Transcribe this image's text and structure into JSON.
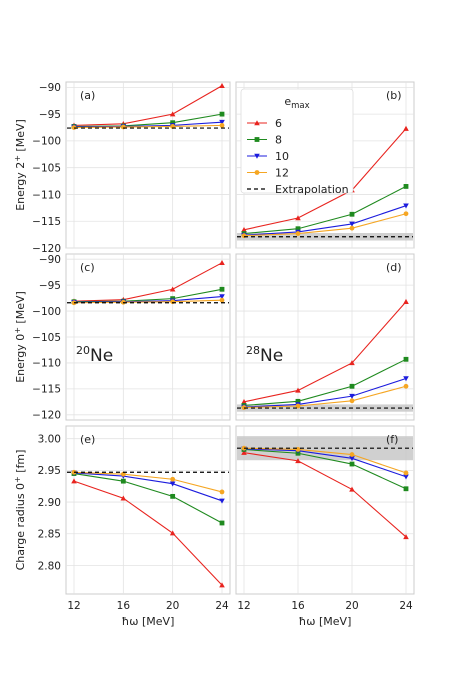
{
  "chart_data": {
    "type": "line",
    "x": [
      12,
      16,
      20,
      24
    ],
    "xlabel": "ħω [MeV]",
    "xticks": [
      "12",
      "16",
      "20",
      "24"
    ],
    "legend": {
      "title_base": "e",
      "title_sub": "max",
      "placement": "top-right of panel (b)",
      "entries": [
        "6",
        "8",
        "10",
        "12",
        "Extrapolation"
      ]
    },
    "series_styles": [
      {
        "name": "6",
        "color": "#e8241f",
        "marker": "triangle-up"
      },
      {
        "name": "8",
        "color": "#1f8a1f",
        "marker": "square"
      },
      {
        "name": "10",
        "color": "#1c1cdd",
        "marker": "triangle-down"
      },
      {
        "name": "12",
        "color": "#f5a623",
        "marker": "circle"
      }
    ],
    "extrapolation_color": "#000000",
    "band_color": "#c8c8c8",
    "nuclei": [
      {
        "base": "Ne",
        "mass": "20",
        "row": 1,
        "col": 0
      },
      {
        "base": "Ne",
        "mass": "28",
        "row": 1,
        "col": 1
      }
    ],
    "rows": [
      {
        "ylabel": "Energy 2$^+$ [MeV]",
        "ylabel_base": "Energy 2",
        "ylabel_sup": "+",
        "ylabel_tail": " [MeV]",
        "ylim": [
          -120,
          -89
        ],
        "yticks": [
          -90,
          -95,
          -100,
          -105,
          -110,
          -115,
          -120
        ],
        "ytick_labels": [
          "−90",
          "−95",
          "−100",
          "−105",
          "−110",
          "−115",
          "−120"
        ]
      },
      {
        "ylabel_base": "Energy 0",
        "ylabel_sup": "+",
        "ylabel_tail": " [MeV]",
        "ylim": [
          -121,
          -89
        ],
        "yticks": [
          -90,
          -95,
          -100,
          -105,
          -110,
          -115,
          -120
        ],
        "ytick_labels": [
          "−90",
          "−95",
          "−100",
          "−105",
          "−110",
          "−115",
          "−120"
        ]
      },
      {
        "ylabel_base": "Charge radius 0",
        "ylabel_sup": "+",
        "ylabel_tail": " [fm]",
        "ylim": [
          2.755,
          3.02
        ],
        "yticks": [
          2.8,
          2.85,
          2.9,
          2.95,
          3.0
        ],
        "ytick_labels": [
          "2.80",
          "2.85",
          "2.90",
          "2.95",
          "3.00"
        ]
      }
    ],
    "panels": [
      {
        "label": "(a)",
        "row": 0,
        "col": 0,
        "series": [
          {
            "name": "6",
            "values": [
              -97.1,
              -96.8,
              -95.0,
              -89.7
            ]
          },
          {
            "name": "8",
            "values": [
              -97.3,
              -97.2,
              -96.6,
              -95.0
            ]
          },
          {
            "name": "10",
            "values": [
              -97.4,
              -97.3,
              -97.1,
              -96.5
            ]
          },
          {
            "name": "12",
            "values": [
              -97.5,
              -97.4,
              -97.3,
              -97.1
            ]
          }
        ],
        "extrapolation": -97.6,
        "band": null
      },
      {
        "label": "(b)",
        "row": 0,
        "col": 1,
        "series": [
          {
            "name": "6",
            "values": [
              -116.6,
              -114.4,
              -109.2,
              -97.7
            ]
          },
          {
            "name": "8",
            "values": [
              -117.3,
              -116.4,
              -113.7,
              -108.5
            ]
          },
          {
            "name": "10",
            "values": [
              -117.6,
              -117.0,
              -115.5,
              -112.1
            ]
          },
          {
            "name": "12",
            "values": [
              -117.7,
              -117.3,
              -116.3,
              -113.6
            ]
          }
        ],
        "extrapolation": -117.9,
        "band": [
          -118.6,
          -117.2
        ]
      },
      {
        "label": "(c)",
        "row": 1,
        "col": 0,
        "series": [
          {
            "name": "6",
            "values": [
              -98.1,
              -97.8,
              -95.8,
              -90.7
            ]
          },
          {
            "name": "8",
            "values": [
              -98.2,
              -98.1,
              -97.6,
              -95.8
            ]
          },
          {
            "name": "10",
            "values": [
              -98.3,
              -98.2,
              -98.0,
              -97.2
            ]
          },
          {
            "name": "12",
            "values": [
              -98.4,
              -98.3,
              -98.2,
              -97.9
            ]
          }
        ],
        "extrapolation": -98.4,
        "band": null
      },
      {
        "label": "(d)",
        "row": 1,
        "col": 1,
        "series": [
          {
            "name": "6",
            "values": [
              -117.5,
              -115.3,
              -110.0,
              -98.2
            ]
          },
          {
            "name": "8",
            "values": [
              -118.2,
              -117.4,
              -114.5,
              -109.3
            ]
          },
          {
            "name": "10",
            "values": [
              -118.5,
              -118.0,
              -116.4,
              -113.0
            ]
          },
          {
            "name": "12",
            "values": [
              -118.6,
              -118.3,
              -117.3,
              -114.5
            ]
          }
        ],
        "extrapolation": -118.7,
        "band": [
          -119.4,
          -118.0
        ]
      },
      {
        "label": "(e)",
        "row": 2,
        "col": 0,
        "series": [
          {
            "name": "6",
            "values": [
              2.933,
              2.906,
              2.851,
              2.769
            ]
          },
          {
            "name": "8",
            "values": [
              2.945,
              2.933,
              2.909,
              2.867
            ]
          },
          {
            "name": "10",
            "values": [
              2.946,
              2.941,
              2.929,
              2.902
            ]
          },
          {
            "name": "12",
            "values": [
              2.947,
              2.944,
              2.936,
              2.916
            ]
          }
        ],
        "extrapolation": 2.947,
        "band": null
      },
      {
        "label": "(f)",
        "row": 2,
        "col": 1,
        "series": [
          {
            "name": "6",
            "values": [
              2.978,
              2.965,
              2.92,
              2.845
            ]
          },
          {
            "name": "8",
            "values": [
              2.983,
              2.977,
              2.96,
              2.921
            ]
          },
          {
            "name": "10",
            "values": [
              2.984,
              2.981,
              2.969,
              2.94
            ]
          },
          {
            "name": "12",
            "values": [
              2.985,
              2.983,
              2.975,
              2.946
            ]
          }
        ],
        "extrapolation": 2.985,
        "band": [
          2.966,
          3.004
        ]
      }
    ]
  }
}
